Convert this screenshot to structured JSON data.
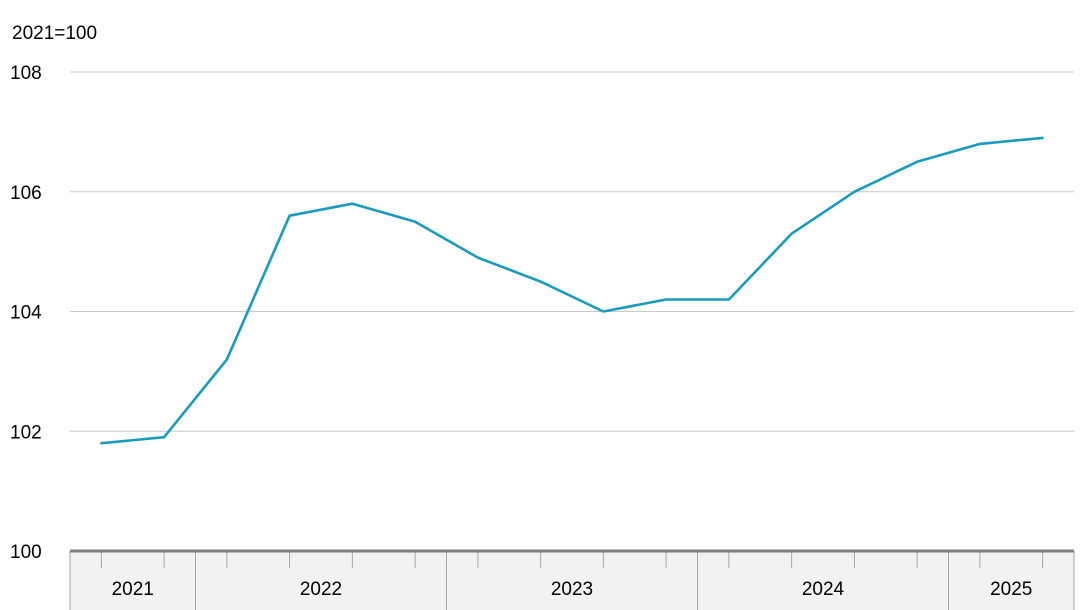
{
  "chart_data": {
    "type": "line",
    "title": "",
    "unit_label": "2021=100",
    "xlabel": "",
    "ylabel": "",
    "ylim": [
      100,
      108
    ],
    "yticks": [
      100,
      102,
      104,
      106,
      108
    ],
    "grid": true,
    "years": [
      {
        "label": "2021",
        "quarters": 2
      },
      {
        "label": "2022",
        "quarters": 4
      },
      {
        "label": "2023",
        "quarters": 4
      },
      {
        "label": "2024",
        "quarters": 4
      },
      {
        "label": "2025",
        "quarters": 2
      }
    ],
    "series": [
      {
        "color": "#1a9bbd",
        "values": [
          101.8,
          101.9,
          103.2,
          105.6,
          105.8,
          105.5,
          104.9,
          104.5,
          104.0,
          104.2,
          104.2,
          105.3,
          106.0,
          106.5,
          106.8,
          106.9
        ]
      }
    ],
    "colors": {
      "grid": "#c8c8c8",
      "axis": "#7f7f7f",
      "xband_bg": "#f2f2f2",
      "xband_border": "#a6a6a6"
    }
  }
}
